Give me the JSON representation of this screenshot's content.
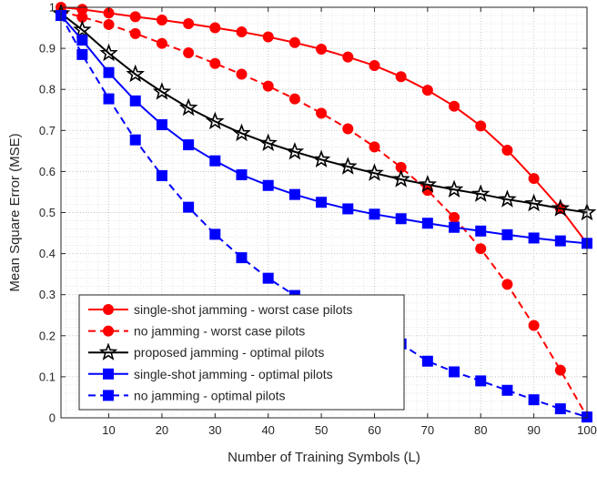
{
  "chart_data": {
    "type": "line",
    "title": "",
    "xlabel": "Number of Training Symbols (L)",
    "ylabel": "Mean Square Error (MSE)",
    "xlim": [
      1,
      100
    ],
    "ylim": [
      0,
      1
    ],
    "xticks": [
      10,
      20,
      30,
      40,
      50,
      60,
      70,
      80,
      90,
      100
    ],
    "yticks": [
      0,
      0.1,
      0.2,
      0.3,
      0.4,
      0.5,
      0.6,
      0.7,
      0.8,
      0.9,
      1
    ],
    "ytick_labels": [
      "0",
      "0.1",
      "0.2",
      "0.3",
      "0.4",
      "0.5",
      "0.6",
      "0.7",
      "0.8",
      "0.9",
      "1"
    ],
    "grid": "major and minor, dotted",
    "legend_position": "bottom-left",
    "x": [
      1,
      5,
      10,
      15,
      20,
      25,
      30,
      35,
      40,
      45,
      50,
      55,
      60,
      65,
      70,
      75,
      80,
      85,
      90,
      95,
      100
    ],
    "series": [
      {
        "name": "single-shot jamming - worst case pilots",
        "color": "#ff0000",
        "line_style": "solid",
        "marker": "circle",
        "values": [
          1.0,
          0.995,
          0.986,
          0.977,
          0.969,
          0.96,
          0.95,
          0.94,
          0.928,
          0.914,
          0.898,
          0.879,
          0.858,
          0.831,
          0.798,
          0.759,
          0.711,
          0.652,
          0.583,
          0.51,
          0.425
        ]
      },
      {
        "name": "no jamming - worst case pilots",
        "color": "#ff0000",
        "line_style": "dashed",
        "marker": "circle",
        "values": [
          0.99,
          0.976,
          0.958,
          0.936,
          0.912,
          0.889,
          0.863,
          0.837,
          0.808,
          0.777,
          0.742,
          0.704,
          0.66,
          0.61,
          0.554,
          0.488,
          0.412,
          0.325,
          0.225,
          0.116,
          0.003
        ]
      },
      {
        "name": "proposed jamming - optimal pilots",
        "color": "#000000",
        "line_style": "solid",
        "marker": "star",
        "values": [
          0.985,
          0.945,
          0.888,
          0.837,
          0.794,
          0.755,
          0.722,
          0.693,
          0.669,
          0.648,
          0.629,
          0.612,
          0.596,
          0.581,
          0.568,
          0.556,
          0.545,
          0.532,
          0.522,
          0.51,
          0.5
        ]
      },
      {
        "name": "single-shot jamming - optimal pilots",
        "color": "#0000ff",
        "line_style": "solid",
        "marker": "square",
        "values": [
          0.98,
          0.92,
          0.841,
          0.772,
          0.714,
          0.665,
          0.626,
          0.592,
          0.566,
          0.544,
          0.525,
          0.509,
          0.496,
          0.485,
          0.474,
          0.464,
          0.455,
          0.446,
          0.438,
          0.431,
          0.425
        ]
      },
      {
        "name": "no jamming - optimal pilots",
        "color": "#0000ff",
        "line_style": "dashed",
        "marker": "square",
        "values": [
          0.98,
          0.885,
          0.777,
          0.677,
          0.59,
          0.513,
          0.447,
          0.39,
          0.34,
          0.298,
          0.262,
          0.23,
          0.203,
          0.18,
          0.138,
          0.112,
          0.09,
          0.067,
          0.044,
          0.022,
          0.002
        ]
      }
    ]
  }
}
